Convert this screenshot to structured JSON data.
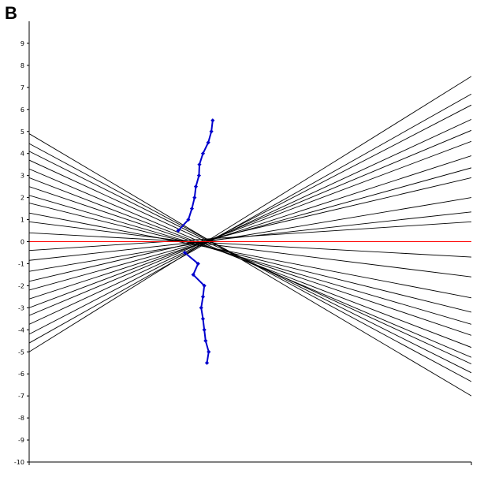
{
  "panel_label": "B",
  "chart_data": {
    "type": "line",
    "title": "",
    "xlabel": "",
    "ylabel": "",
    "ylim": [
      -10,
      10
    ],
    "xlim": [
      0,
      1
    ],
    "grid": false,
    "legend": "none",
    "yticks": [
      "-10",
      "-9",
      "-8",
      "-7",
      "-6",
      "-5",
      "-4",
      "-3",
      "-2",
      "-1",
      "0",
      "1",
      "2",
      "3",
      "4",
      "5",
      "6",
      "7",
      "8",
      "9"
    ],
    "colors": {
      "fan_lines": "#000000",
      "reference_line": "#ff0000",
      "marker_series": "#0000cc",
      "axis": "#000000"
    },
    "reference_line": {
      "y": 0
    },
    "fan_lines": [
      {
        "x0": 0,
        "y0": 4.9,
        "x1": 1,
        "y1": -7.0
      },
      {
        "x0": 0,
        "y0": 4.45,
        "x1": 1,
        "y1": -6.35
      },
      {
        "x0": 0,
        "y0": 4.1,
        "x1": 1,
        "y1": -5.95
      },
      {
        "x0": 0,
        "y0": 3.7,
        "x1": 1,
        "y1": -5.55
      },
      {
        "x0": 0,
        "y0": 3.3,
        "x1": 1,
        "y1": -5.25
      },
      {
        "x0": 0,
        "y0": 2.9,
        "x1": 1,
        "y1": -4.8
      },
      {
        "x0": 0,
        "y0": 2.5,
        "x1": 1,
        "y1": -4.25
      },
      {
        "x0": 0,
        "y0": 2.1,
        "x1": 1,
        "y1": -3.75
      },
      {
        "x0": 0,
        "y0": 1.75,
        "x1": 1,
        "y1": -3.2
      },
      {
        "x0": 0,
        "y0": 1.3,
        "x1": 1,
        "y1": -2.55
      },
      {
        "x0": 0,
        "y0": 0.9,
        "x1": 1,
        "y1": -1.6
      },
      {
        "x0": 0,
        "y0": 0.4,
        "x1": 1,
        "y1": -0.7
      },
      {
        "x0": 0,
        "y0": -0.4,
        "x1": 1,
        "y1": 0.9
      },
      {
        "x0": 0,
        "y0": -0.85,
        "x1": 1,
        "y1": 1.35
      },
      {
        "x0": 0,
        "y0": -1.35,
        "x1": 1,
        "y1": 2.0
      },
      {
        "x0": 0,
        "y0": -1.8,
        "x1": 1,
        "y1": 2.9
      },
      {
        "x0": 0,
        "y0": -2.2,
        "x1": 1,
        "y1": 3.35
      },
      {
        "x0": 0,
        "y0": -2.6,
        "x1": 1,
        "y1": 3.9
      },
      {
        "x0": 0,
        "y0": -3.0,
        "x1": 1,
        "y1": 4.55
      },
      {
        "x0": 0,
        "y0": -3.35,
        "x1": 1,
        "y1": 5.05
      },
      {
        "x0": 0,
        "y0": -3.75,
        "x1": 1,
        "y1": 5.55
      },
      {
        "x0": 0,
        "y0": -4.2,
        "x1": 1,
        "y1": 6.2
      },
      {
        "x0": 0,
        "y0": -4.6,
        "x1": 1,
        "y1": 6.7
      },
      {
        "x0": 0,
        "y0": -5.0,
        "x1": 1,
        "y1": 7.5
      }
    ],
    "series": [
      {
        "points": [
          [
            0.415,
            5.5
          ],
          [
            0.412,
            5.0
          ],
          [
            0.405,
            4.5
          ],
          [
            0.393,
            4.0
          ],
          [
            0.385,
            3.5
          ],
          [
            0.384,
            3.0
          ],
          [
            0.377,
            2.5
          ],
          [
            0.374,
            2.0
          ],
          [
            0.368,
            1.5
          ],
          [
            0.36,
            1.0
          ],
          [
            0.337,
            0.5
          ]
        ]
      },
      {
        "points": [
          [
            0.352,
            -0.5
          ],
          [
            0.382,
            -1.0
          ],
          [
            0.371,
            -1.5
          ],
          [
            0.396,
            -2.0
          ],
          [
            0.393,
            -2.5
          ],
          [
            0.389,
            -3.0
          ],
          [
            0.393,
            -3.5
          ],
          [
            0.396,
            -4.0
          ],
          [
            0.399,
            -4.5
          ],
          [
            0.406,
            -5.0
          ],
          [
            0.402,
            -5.5
          ]
        ]
      }
    ]
  }
}
